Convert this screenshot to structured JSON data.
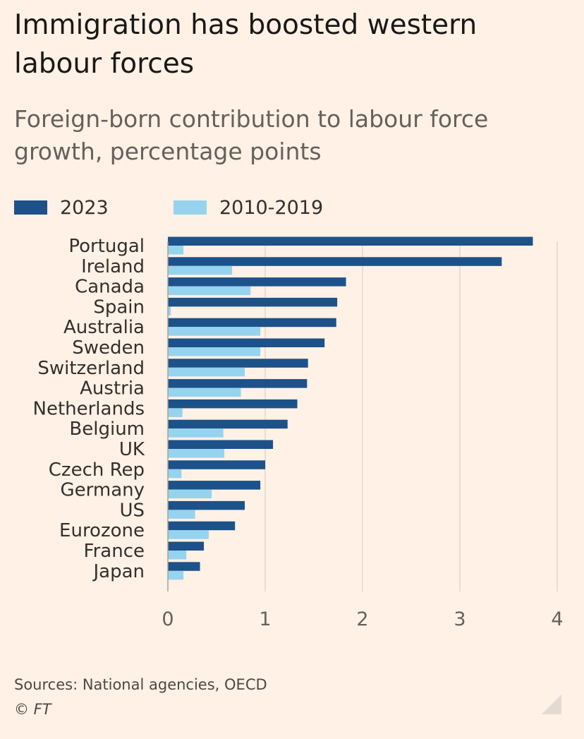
{
  "title": "Immigration has boosted western labour forces",
  "subtitle": "Foreign-born contribution to labour force growth, percentage points",
  "source": "Sources: National agencies, OECD",
  "credit": "© FT",
  "colors": {
    "series_2023": "#1d5189",
    "series_2010_2019": "#96d3ee",
    "background": "#fff1e5",
    "gridline": "#e2d8cf"
  },
  "chart_data": {
    "type": "bar",
    "orientation": "horizontal",
    "categories": [
      "Portugal",
      "Ireland",
      "Canada",
      "Spain",
      "Australia",
      "Sweden",
      "Switzerland",
      "Austria",
      "Netherlands",
      "Belgium",
      "UK",
      "Czech Rep",
      "Germany",
      "US",
      "Eurozone",
      "France",
      "Japan"
    ],
    "series": [
      {
        "name": "2023",
        "values": [
          3.75,
          3.43,
          1.83,
          1.74,
          1.73,
          1.61,
          1.44,
          1.43,
          1.33,
          1.23,
          1.08,
          1.0,
          0.95,
          0.79,
          0.69,
          0.37,
          0.33
        ]
      },
      {
        "name": "2010-2019",
        "values": [
          0.16,
          0.66,
          0.85,
          0.03,
          0.95,
          0.95,
          0.79,
          0.75,
          0.15,
          0.57,
          0.58,
          0.14,
          0.45,
          0.28,
          0.42,
          0.19,
          0.16
        ]
      }
    ],
    "xlim": [
      0,
      4
    ],
    "xticks": [
      "0",
      "1",
      "2",
      "3",
      "4"
    ],
    "grid": "vertical",
    "legend": "top-left"
  }
}
